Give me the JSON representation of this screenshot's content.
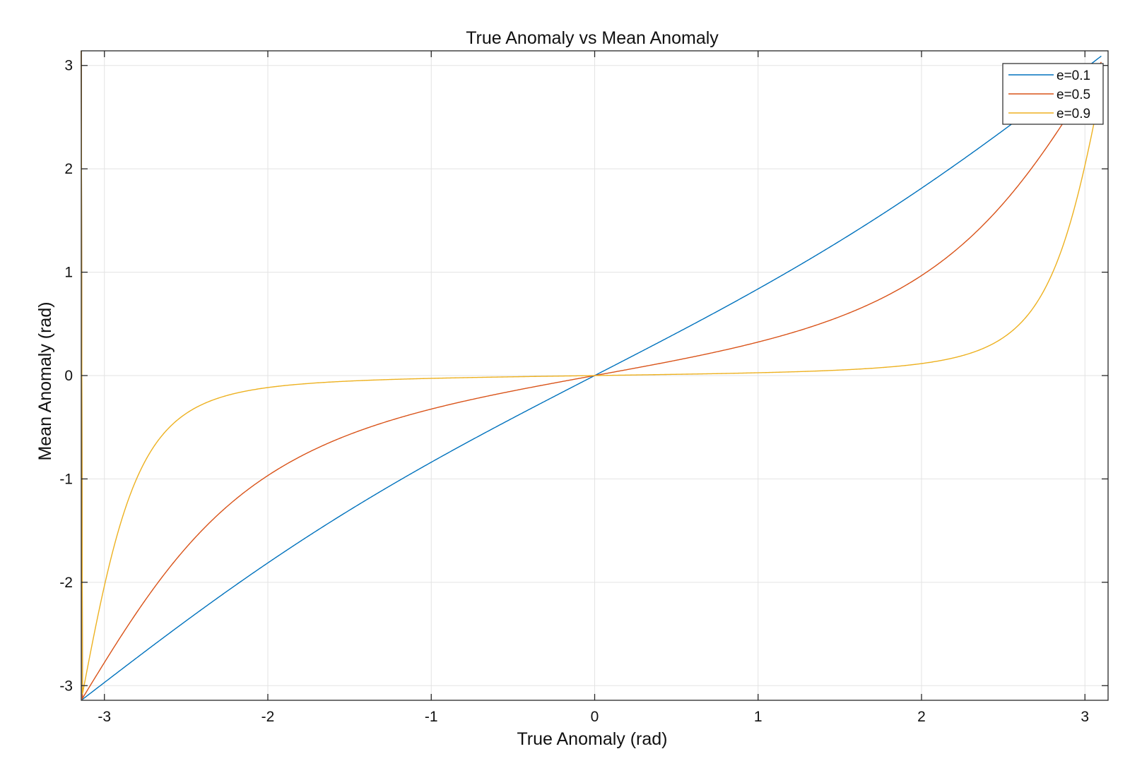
{
  "chart_data": {
    "type": "line",
    "title": "True Anomaly vs Mean Anomaly",
    "xlabel": "True Anomaly (rad)",
    "ylabel": "Mean Anomaly (rad)",
    "xlim": [
      -3.1416,
      3.1416
    ],
    "ylim": [
      -3.1416,
      3.1416
    ],
    "xticks": [
      -3,
      -2,
      -1,
      0,
      1,
      2,
      3
    ],
    "yticks": [
      -3,
      -2,
      -1,
      0,
      1,
      2,
      3
    ],
    "xtick_labels": [
      "-3",
      "-2",
      "-1",
      "0",
      "1",
      "2",
      "3"
    ],
    "ytick_labels": [
      "-3",
      "-2",
      "-1",
      "0",
      "1",
      "2",
      "3"
    ],
    "grid": true,
    "legend_position": "top-right",
    "x_range": [
      -3.1416,
      3.1
    ],
    "series": [
      {
        "name": "e=0.1",
        "color": "#0072BD",
        "x": [
          -3.14,
          -3.0,
          -2.5,
          -2.0,
          -1.5,
          -1.0,
          -0.5,
          0.0,
          0.5,
          1.0,
          1.5,
          2.0,
          2.5,
          3.0,
          3.1
        ],
        "y": [
          -3.14,
          -2.99,
          -2.44,
          -1.82,
          -1.31,
          -0.84,
          -0.41,
          0.0,
          0.41,
          0.84,
          1.31,
          1.82,
          2.44,
          2.99,
          3.1
        ]
      },
      {
        "name": "e=0.5",
        "color": "#D95319",
        "x": [
          -3.14,
          -3.0,
          -2.5,
          -2.0,
          -1.5,
          -1.0,
          -0.5,
          0.0,
          0.5,
          1.0,
          1.5,
          2.0,
          2.5,
          3.0,
          3.1
        ],
        "y": [
          -3.14,
          -2.73,
          -1.67,
          -0.97,
          -0.58,
          -0.32,
          -0.14,
          0.0,
          0.14,
          0.32,
          0.58,
          0.97,
          1.67,
          2.73,
          3.05
        ]
      },
      {
        "name": "e=0.9",
        "color": "#EDB120",
        "x": [
          -3.14,
          -3.0,
          -2.9,
          -2.75,
          -2.5,
          -2.0,
          -1.0,
          0.0,
          1.0,
          2.0,
          2.5,
          2.75,
          2.9,
          3.0,
          3.1
        ],
        "y": [
          -3.14,
          -2.0,
          -1.35,
          -0.7,
          -0.33,
          -0.12,
          -0.03,
          0.0,
          0.03,
          0.12,
          0.33,
          0.7,
          1.35,
          2.0,
          2.85
        ]
      }
    ]
  }
}
